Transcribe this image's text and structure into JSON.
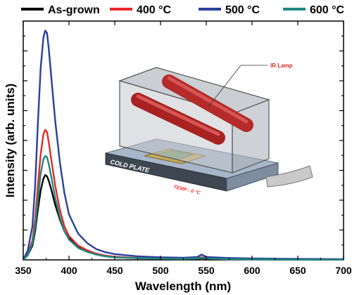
{
  "chart_data": {
    "type": "line",
    "xlabel": "Wavelength (nm)",
    "ylabel": "Intensity (arb. units)",
    "xlim": [
      350,
      700
    ],
    "ylim": [
      0,
      1
    ],
    "xticks": [
      350,
      400,
      450,
      500,
      550,
      600,
      650,
      700
    ],
    "legend_position": "top",
    "grid": false,
    "series": [
      {
        "name": "As-grown",
        "color": "#000000",
        "x": [
          350,
          355,
          360,
          363,
          366,
          369,
          372,
          374,
          376,
          378,
          381,
          385,
          390,
          395,
          400,
          410,
          420,
          430,
          440,
          450,
          475,
          500,
          525,
          540,
          545,
          550,
          575,
          600,
          650,
          700
        ],
        "y": [
          0.0,
          0.02,
          0.06,
          0.12,
          0.21,
          0.29,
          0.34,
          0.355,
          0.35,
          0.33,
          0.29,
          0.23,
          0.17,
          0.12,
          0.09,
          0.055,
          0.035,
          0.022,
          0.015,
          0.011,
          0.007,
          0.005,
          0.004,
          0.005,
          0.007,
          0.005,
          0.003,
          0.002,
          0.001,
          0.001
        ]
      },
      {
        "name": "400 °C",
        "color": "#e8282b",
        "x": [
          350,
          355,
          360,
          363,
          366,
          369,
          372,
          374,
          376,
          378,
          381,
          385,
          390,
          395,
          400,
          410,
          420,
          430,
          440,
          450,
          475,
          500,
          525,
          540,
          545,
          550,
          575,
          600,
          650,
          700
        ],
        "y": [
          0.0,
          0.025,
          0.08,
          0.17,
          0.31,
          0.44,
          0.525,
          0.545,
          0.535,
          0.49,
          0.41,
          0.31,
          0.21,
          0.14,
          0.1,
          0.06,
          0.04,
          0.026,
          0.018,
          0.013,
          0.008,
          0.006,
          0.005,
          0.007,
          0.011,
          0.007,
          0.004,
          0.003,
          0.002,
          0.001
        ]
      },
      {
        "name": "500 °C",
        "color": "#2a3f9c",
        "x": [
          350,
          355,
          360,
          363,
          366,
          369,
          372,
          374,
          376,
          378,
          381,
          385,
          390,
          395,
          400,
          410,
          420,
          430,
          440,
          450,
          475,
          500,
          525,
          540,
          545,
          550,
          575,
          600,
          650,
          700
        ],
        "y": [
          0.0,
          0.04,
          0.14,
          0.31,
          0.57,
          0.8,
          0.93,
          0.96,
          0.95,
          0.88,
          0.75,
          0.58,
          0.41,
          0.28,
          0.19,
          0.11,
          0.07,
          0.045,
          0.032,
          0.024,
          0.015,
          0.011,
          0.009,
          0.012,
          0.022,
          0.012,
          0.008,
          0.006,
          0.004,
          0.003
        ]
      },
      {
        "name": "600 °C",
        "color": "#1f8a80",
        "x": [
          350,
          355,
          360,
          363,
          366,
          369,
          372,
          374,
          376,
          378,
          381,
          385,
          390,
          395,
          400,
          410,
          420,
          430,
          440,
          450,
          475,
          500,
          525,
          540,
          545,
          550,
          575,
          600,
          650,
          700
        ],
        "y": [
          0.0,
          0.02,
          0.07,
          0.14,
          0.25,
          0.36,
          0.42,
          0.435,
          0.43,
          0.4,
          0.34,
          0.26,
          0.18,
          0.12,
          0.085,
          0.05,
          0.033,
          0.022,
          0.015,
          0.011,
          0.007,
          0.005,
          0.004,
          0.006,
          0.009,
          0.006,
          0.003,
          0.002,
          0.001,
          0.001
        ]
      }
    ]
  },
  "inset": {
    "lamp_label": "IR Lamp",
    "plate_label": "COLD PLATE",
    "temp_label": "TEMP : 0 °C"
  }
}
